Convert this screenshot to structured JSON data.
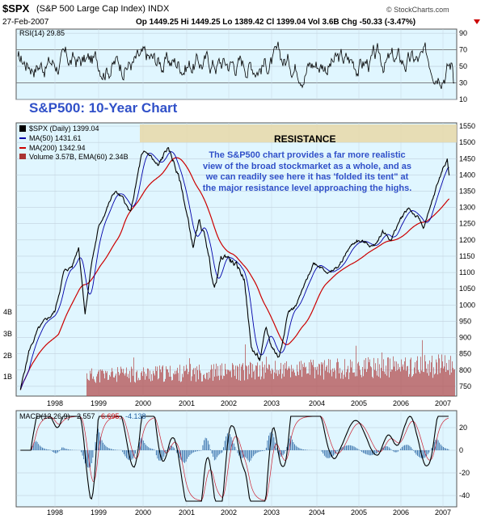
{
  "header": {
    "symbol": "$SPX",
    "name": "(S&P 500 Large Cap Index) INDX",
    "date": "27-Feb-2007",
    "ohlc": "Op 1449.25 Hi 1449.25 Lo 1389.42 Cl 1399.04 Vol 3.6B Chg -50.33 (-3.47%)",
    "watermark": "© StockCharts.com"
  },
  "chart_data": [
    {
      "type": "line",
      "panel": "RSI",
      "series": [
        {
          "name": "RSI(14) 29.85",
          "last": 29.85
        }
      ],
      "yticks": [
        10,
        30,
        50,
        70,
        90
      ],
      "ylim": [
        10,
        95
      ],
      "guides": [
        30,
        70
      ]
    },
    {
      "type": "line",
      "panel": "price",
      "title": "S&P500: 10-Year Chart",
      "x_ticks": [
        "1998",
        "1999",
        "2000",
        "2001",
        "2002",
        "2003",
        "2004",
        "2005",
        "2006",
        "2007"
      ],
      "yticks": [
        750,
        800,
        850,
        900,
        950,
        1000,
        1050,
        1100,
        1150,
        1200,
        1250,
        1300,
        1350,
        1400,
        1450,
        1500,
        1550
      ],
      "ylim": [
        720,
        1560
      ],
      "volume_ticks": [
        "1B",
        "2B",
        "3B",
        "4B"
      ],
      "resistance": {
        "label": "RESISTANCE",
        "from": 1500,
        "to": 1555
      },
      "annotation": "The S&P500 chart provides a far more realistic view of the broad stockmarket as a whole, and as we can readily see here it has 'folded its tent\" at the major resistance level approaching the highs.",
      "series": [
        {
          "name": "$SPX (Daily) 1399.04",
          "color": "#000000",
          "x": [
            1997.2,
            1997.4,
            1997.6,
            1997.8,
            1998.0,
            1998.2,
            1998.4,
            1998.55,
            1998.7,
            1998.85,
            1999.0,
            1999.2,
            1999.4,
            1999.6,
            1999.75,
            2000.0,
            2000.2,
            2000.4,
            2000.6,
            2000.75,
            2000.9,
            2001.0,
            2001.2,
            2001.35,
            2001.5,
            2001.7,
            2001.85,
            2002.0,
            2002.2,
            2002.4,
            2002.55,
            2002.75,
            2002.9,
            2003.0,
            2003.2,
            2003.4,
            2003.6,
            2003.8,
            2004.0,
            2004.2,
            2004.4,
            2004.6,
            2004.8,
            2005.0,
            2005.2,
            2005.4,
            2005.6,
            2005.8,
            2006.0,
            2006.2,
            2006.4,
            2006.55,
            2006.7,
            2006.85,
            2007.0,
            2007.1,
            2007.15
          ],
          "y": [
            740,
            860,
            920,
            950,
            980,
            1100,
            1120,
            1180,
            980,
            1130,
            1230,
            1300,
            1350,
            1320,
            1280,
            1450,
            1460,
            1420,
            1480,
            1440,
            1380,
            1320,
            1180,
            1250,
            1200,
            1050,
            1140,
            1150,
            1120,
            1080,
            870,
            830,
            920,
            880,
            840,
            980,
            1000,
            1060,
            1130,
            1120,
            1100,
            1120,
            1170,
            1200,
            1190,
            1180,
            1230,
            1200,
            1260,
            1300,
            1270,
            1240,
            1290,
            1360,
            1420,
            1450,
            1399
          ]
        },
        {
          "name": "MA(50) 1431.61",
          "color": "#0000aa",
          "last": 1431.61
        },
        {
          "name": "MA(200) 1342.94",
          "color": "#cc0000",
          "last": 1342.94
        },
        {
          "name": "Volume 3.57B, EMA(60) 2.34B",
          "color": "#aa3333"
        }
      ]
    },
    {
      "type": "line",
      "panel": "MACD",
      "series": [
        {
          "name": "MACD(12,26,9)",
          "values": [
            2.557,
            6.695,
            -4.138
          ]
        }
      ],
      "yticks": [
        -40,
        -20,
        0,
        20
      ],
      "ylim": [
        -50,
        35
      ],
      "x_ticks": [
        "1998",
        "1999",
        "2000",
        "2001",
        "2002",
        "2003",
        "2004",
        "2005",
        "2006",
        "2007"
      ]
    }
  ]
}
